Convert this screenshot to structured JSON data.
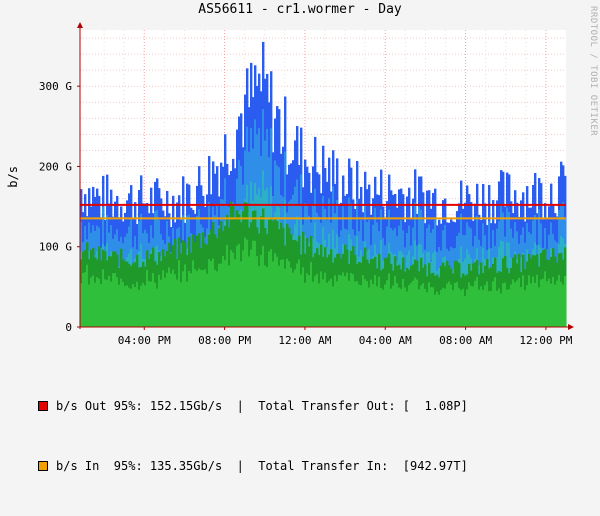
{
  "title": "AS56611 - cr1.wormer - Day",
  "credit": "RRDTOOL / TOBI OETIKER",
  "chart_data": {
    "type": "area",
    "title": "AS56611 - cr1.wormer - Day",
    "ylabel": "b/s",
    "ylim": [
      0,
      370
    ],
    "y_unit": "G",
    "y_ticks": [
      0,
      100,
      200,
      300
    ],
    "y_tick_labels": [
      "0",
      "100 G",
      "200 G",
      "300 G"
    ],
    "x_tick_labels": [
      "04:00 PM",
      "08:00 PM",
      "12:00 AM",
      "04:00 AM",
      "08:00 AM",
      "12:00 PM"
    ],
    "x_tick_hours": [
      3.2,
      7.2,
      11.2,
      15.2,
      19.2,
      23.2
    ],
    "x_range_hours": [
      0,
      24.2
    ],
    "grid": true,
    "series": [
      {
        "name": "b/s Out",
        "color": "#1f3fe0",
        "x": [
          0,
          1,
          2,
          3,
          4,
          5,
          6,
          7,
          8,
          9,
          10,
          11,
          12,
          13,
          14,
          15,
          16,
          17,
          18,
          19,
          20,
          21,
          22,
          23,
          24
        ],
        "values": [
          175,
          160,
          162,
          160,
          158,
          160,
          178,
          210,
          265,
          305,
          250,
          215,
          200,
          185,
          172,
          170,
          168,
          165,
          160,
          158,
          162,
          165,
          168,
          170,
          175
        ]
      },
      {
        "name": "b/s In",
        "color": "#22a022",
        "x": [
          0,
          1,
          2,
          3,
          4,
          5,
          6,
          7,
          8,
          9,
          10,
          11,
          12,
          13,
          14,
          15,
          16,
          17,
          18,
          19,
          20,
          21,
          22,
          23,
          24
        ],
        "values": [
          95,
          88,
          85,
          85,
          90,
          98,
          110,
          128,
          145,
          135,
          118,
          105,
          95,
          92,
          88,
          82,
          78,
          75,
          72,
          72,
          75,
          78,
          80,
          85,
          90
        ]
      }
    ],
    "percentile_lines": [
      {
        "name": "b/s Out 95%",
        "value": 152.15,
        "color": "#e00000"
      },
      {
        "name": "b/s In 95%",
        "value": 135.35,
        "color": "#f0a000"
      }
    ]
  },
  "legend": [
    {
      "color": "#e00000",
      "text": "b/s Out 95%: 152.15Gb/s  |  Total Transfer Out: [  1.08P]"
    },
    {
      "color": "#f0a000",
      "text": "b/s In  95%: 135.35Gb/s  |  Total Transfer In:  [942.97T]"
    }
  ]
}
